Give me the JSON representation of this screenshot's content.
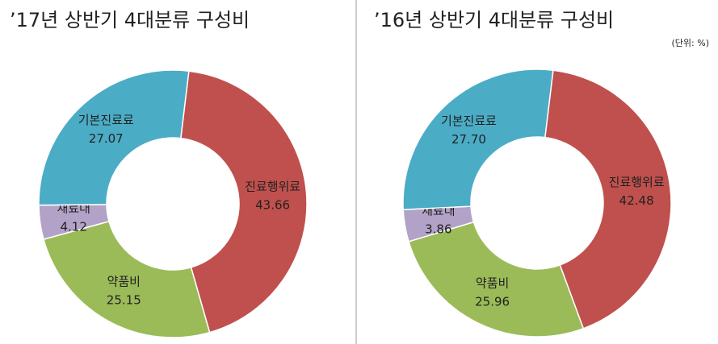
{
  "chart_data": [
    {
      "type": "donut",
      "title": "’17년 상반기 4대분류 구성비",
      "categories": [
        "진료행위료",
        "약품비",
        "재료대",
        "기본진료료"
      ],
      "values": [
        43.66,
        25.15,
        4.12,
        27.07
      ],
      "value_labels": [
        "43.66",
        "25.15",
        "4.12",
        "27.07"
      ],
      "colors": [
        "#c0504d",
        "#9bbb59",
        "#b3a2c7",
        "#4bacc6"
      ]
    },
    {
      "type": "donut",
      "title": "’16년 상반기 4대분류 구성비",
      "unit": "(단위: %)",
      "categories": [
        "진료행위료",
        "약품비",
        "재료대",
        "기본진료료"
      ],
      "values": [
        42.48,
        25.96,
        3.86,
        27.7
      ],
      "value_labels": [
        "42.48",
        "25.96",
        "3.86",
        "27.70"
      ],
      "colors": [
        "#c0504d",
        "#9bbb59",
        "#b3a2c7",
        "#4bacc6"
      ]
    }
  ]
}
